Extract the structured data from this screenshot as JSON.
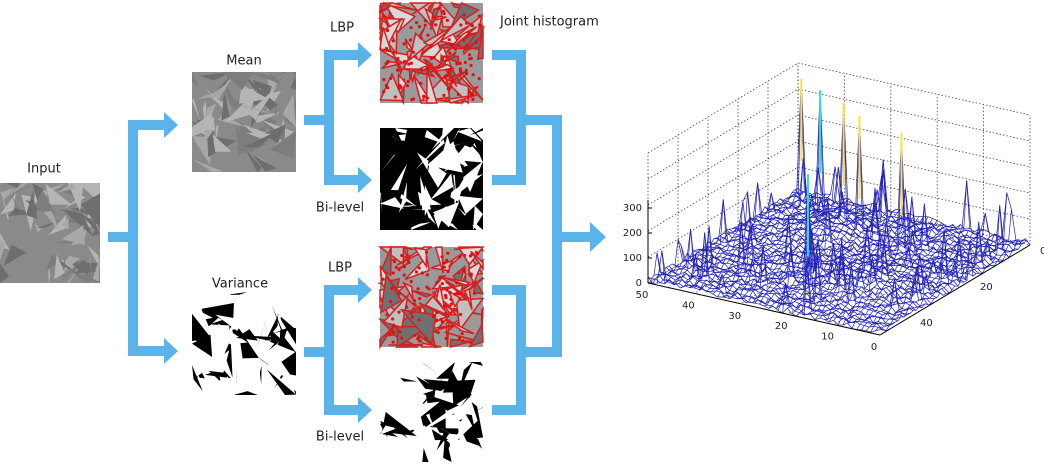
{
  "labels": {
    "input": "Input",
    "mean": "Mean",
    "variance": "Variance",
    "lbp_top": "LBP",
    "bilevel_top": "Bi-level",
    "lbp_bottom": "LBP",
    "bilevel_bottom": "Bi-level",
    "joint_histogram": "Joint histogram"
  },
  "plot": {
    "z_ticks": [
      300,
      200,
      100,
      0
    ],
    "x_ticks": [
      50,
      40,
      30,
      20,
      10,
      0
    ],
    "y_ticks": [
      0,
      20,
      40
    ]
  }
}
